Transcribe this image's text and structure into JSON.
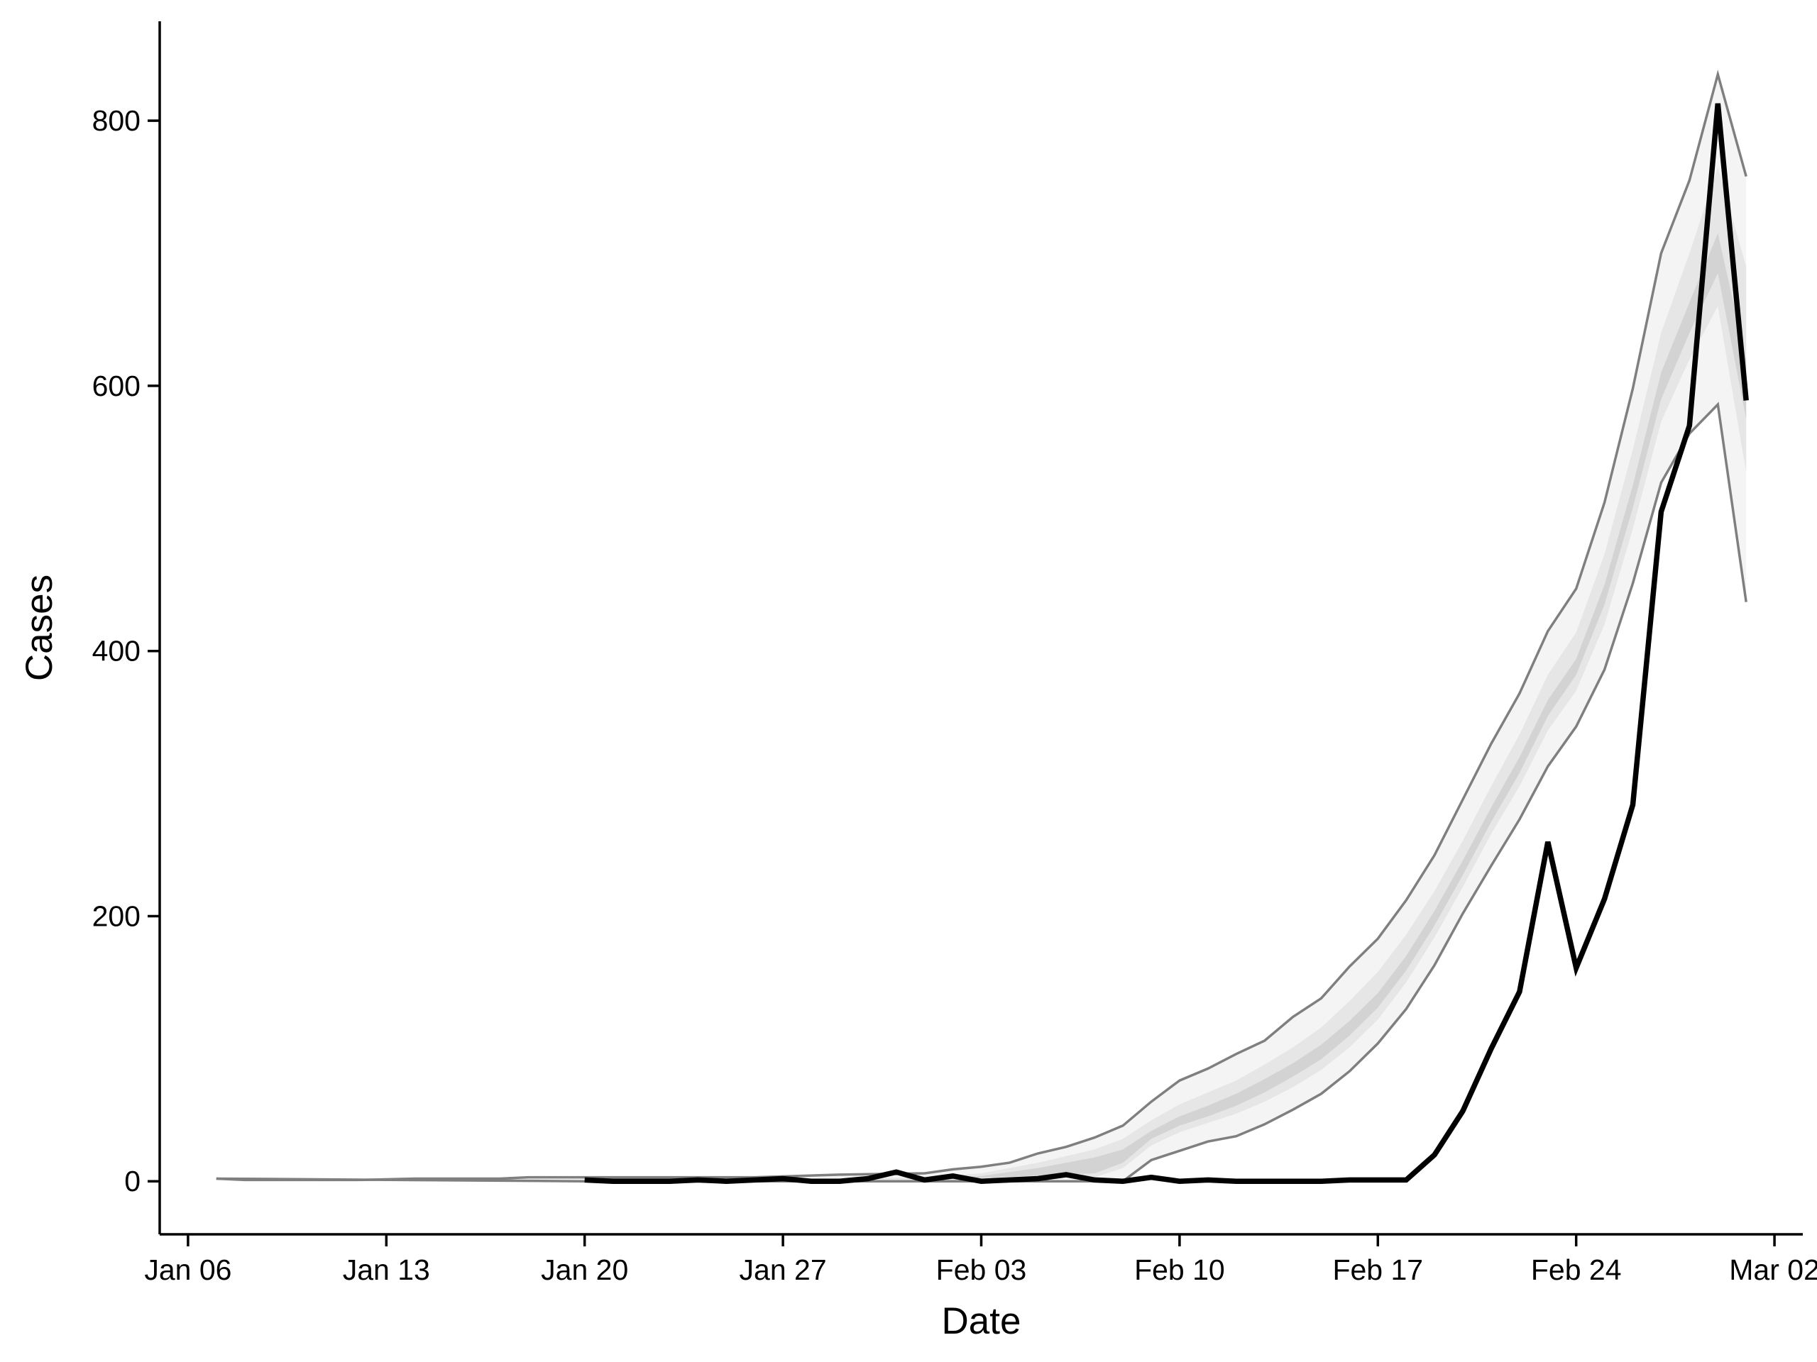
{
  "chart_data": {
    "type": "line",
    "title": "",
    "xlabel": "Date",
    "ylabel": "Cases",
    "x_tick_labels": [
      "Jan 06",
      "Jan 13",
      "Jan 20",
      "Jan 27",
      "Feb 03",
      "Feb 10",
      "Feb 17",
      "Feb 24",
      "Mar 02"
    ],
    "x_ticks": [
      "2020-01-06",
      "2020-01-13",
      "2020-01-20",
      "2020-01-27",
      "2020-02-03",
      "2020-02-10",
      "2020-02-17",
      "2020-02-24",
      "2020-03-02"
    ],
    "y_tick_labels": [
      "0",
      "200",
      "400",
      "600",
      "800"
    ],
    "y_ticks": [
      0,
      200,
      400,
      600,
      800
    ],
    "xlim": [
      "2020-01-05",
      "2020-03-03"
    ],
    "ylim": [
      -40,
      875
    ],
    "grid": false,
    "colors": {
      "observed": "#000000",
      "band_outer": "#7f7f7f",
      "band_fill_outer": "#f4f4f4",
      "band_fill_mid": "#e6e6e6",
      "band_fill_inner": "#d3d3d3"
    },
    "bands": {
      "upper_outer": [
        {
          "x": "2020-01-07",
          "y": 2
        },
        {
          "x": "2020-01-08",
          "y": 1
        },
        {
          "x": "2020-01-10",
          "y": 1
        },
        {
          "x": "2020-01-12",
          "y": 1
        },
        {
          "x": "2020-01-14",
          "y": 2
        },
        {
          "x": "2020-01-17",
          "y": 2
        },
        {
          "x": "2020-01-18",
          "y": 3
        },
        {
          "x": "2020-01-20",
          "y": 3
        },
        {
          "x": "2020-01-23",
          "y": 3
        },
        {
          "x": "2020-01-26",
          "y": 3
        },
        {
          "x": "2020-01-29",
          "y": 5
        },
        {
          "x": "2020-02-01",
          "y": 6
        },
        {
          "x": "2020-02-02",
          "y": 9
        },
        {
          "x": "2020-02-03",
          "y": 11
        },
        {
          "x": "2020-02-04",
          "y": 14
        },
        {
          "x": "2020-02-05",
          "y": 21
        },
        {
          "x": "2020-02-06",
          "y": 26
        },
        {
          "x": "2020-02-07",
          "y": 33
        },
        {
          "x": "2020-02-08",
          "y": 42
        },
        {
          "x": "2020-02-09",
          "y": 60
        },
        {
          "x": "2020-02-10",
          "y": 76
        },
        {
          "x": "2020-02-11",
          "y": 85
        },
        {
          "x": "2020-02-12",
          "y": 96
        },
        {
          "x": "2020-02-13",
          "y": 106
        },
        {
          "x": "2020-02-14",
          "y": 124
        },
        {
          "x": "2020-02-15",
          "y": 138
        },
        {
          "x": "2020-02-16",
          "y": 162
        },
        {
          "x": "2020-02-17",
          "y": 183
        },
        {
          "x": "2020-02-18",
          "y": 212
        },
        {
          "x": "2020-02-19",
          "y": 246
        },
        {
          "x": "2020-02-20",
          "y": 288
        },
        {
          "x": "2020-02-21",
          "y": 330
        },
        {
          "x": "2020-02-22",
          "y": 368
        },
        {
          "x": "2020-02-23",
          "y": 415
        },
        {
          "x": "2020-02-24",
          "y": 447
        },
        {
          "x": "2020-02-25",
          "y": 512
        },
        {
          "x": "2020-02-26",
          "y": 598
        },
        {
          "x": "2020-02-27",
          "y": 700
        },
        {
          "x": "2020-02-28",
          "y": 755
        },
        {
          "x": "2020-02-29",
          "y": 835
        },
        {
          "x": "2020-03-01",
          "y": 758
        }
      ],
      "lower_outer": [
        {
          "x": "2020-01-07",
          "y": 2
        },
        {
          "x": "2020-01-20",
          "y": 0
        },
        {
          "x": "2020-02-08",
          "y": 0
        },
        {
          "x": "2020-02-09",
          "y": 16
        },
        {
          "x": "2020-02-10",
          "y": 23
        },
        {
          "x": "2020-02-11",
          "y": 30
        },
        {
          "x": "2020-02-12",
          "y": 34
        },
        {
          "x": "2020-02-13",
          "y": 43
        },
        {
          "x": "2020-02-14",
          "y": 54
        },
        {
          "x": "2020-02-15",
          "y": 66
        },
        {
          "x": "2020-02-16",
          "y": 83
        },
        {
          "x": "2020-02-17",
          "y": 104
        },
        {
          "x": "2020-02-18",
          "y": 130
        },
        {
          "x": "2020-02-19",
          "y": 163
        },
        {
          "x": "2020-02-20",
          "y": 202
        },
        {
          "x": "2020-02-21",
          "y": 238
        },
        {
          "x": "2020-02-22",
          "y": 273
        },
        {
          "x": "2020-02-23",
          "y": 313
        },
        {
          "x": "2020-02-24",
          "y": 343
        },
        {
          "x": "2020-02-25",
          "y": 386
        },
        {
          "x": "2020-02-26",
          "y": 451
        },
        {
          "x": "2020-02-27",
          "y": 527
        },
        {
          "x": "2020-02-28",
          "y": 564
        },
        {
          "x": "2020-02-29",
          "y": 586
        },
        {
          "x": "2020-03-01",
          "y": 437
        }
      ],
      "upper_mid": [
        {
          "x": "2020-01-28",
          "y": 2
        },
        {
          "x": "2020-02-01",
          "y": 3
        },
        {
          "x": "2020-02-03",
          "y": 6
        },
        {
          "x": "2020-02-05",
          "y": 14
        },
        {
          "x": "2020-02-07",
          "y": 24
        },
        {
          "x": "2020-02-08",
          "y": 32
        },
        {
          "x": "2020-02-09",
          "y": 46
        },
        {
          "x": "2020-02-10",
          "y": 58
        },
        {
          "x": "2020-02-11",
          "y": 67
        },
        {
          "x": "2020-02-12",
          "y": 76
        },
        {
          "x": "2020-02-13",
          "y": 88
        },
        {
          "x": "2020-02-14",
          "y": 101
        },
        {
          "x": "2020-02-15",
          "y": 116
        },
        {
          "x": "2020-02-16",
          "y": 136
        },
        {
          "x": "2020-02-17",
          "y": 158
        },
        {
          "x": "2020-02-18",
          "y": 186
        },
        {
          "x": "2020-02-19",
          "y": 219
        },
        {
          "x": "2020-02-20",
          "y": 257
        },
        {
          "x": "2020-02-21",
          "y": 298
        },
        {
          "x": "2020-02-22",
          "y": 337
        },
        {
          "x": "2020-02-23",
          "y": 382
        },
        {
          "x": "2020-02-24",
          "y": 414
        },
        {
          "x": "2020-02-25",
          "y": 473
        },
        {
          "x": "2020-02-26",
          "y": 552
        },
        {
          "x": "2020-02-27",
          "y": 640
        },
        {
          "x": "2020-02-28",
          "y": 700
        },
        {
          "x": "2020-02-29",
          "y": 765
        },
        {
          "x": "2020-03-01",
          "y": 690
        }
      ],
      "lower_mid": [
        {
          "x": "2020-01-28",
          "y": 1
        },
        {
          "x": "2020-02-03",
          "y": 1
        },
        {
          "x": "2020-02-07",
          "y": 3
        },
        {
          "x": "2020-02-08",
          "y": 10
        },
        {
          "x": "2020-02-09",
          "y": 27
        },
        {
          "x": "2020-02-10",
          "y": 37
        },
        {
          "x": "2020-02-11",
          "y": 44
        },
        {
          "x": "2020-02-12",
          "y": 51
        },
        {
          "x": "2020-02-13",
          "y": 60
        },
        {
          "x": "2020-02-14",
          "y": 71
        },
        {
          "x": "2020-02-15",
          "y": 84
        },
        {
          "x": "2020-02-16",
          "y": 101
        },
        {
          "x": "2020-02-17",
          "y": 122
        },
        {
          "x": "2020-02-18",
          "y": 150
        },
        {
          "x": "2020-02-19",
          "y": 184
        },
        {
          "x": "2020-02-20",
          "y": 222
        },
        {
          "x": "2020-02-21",
          "y": 262
        },
        {
          "x": "2020-02-22",
          "y": 298
        },
        {
          "x": "2020-02-23",
          "y": 340
        },
        {
          "x": "2020-02-24",
          "y": 370
        },
        {
          "x": "2020-02-25",
          "y": 420
        },
        {
          "x": "2020-02-26",
          "y": 492
        },
        {
          "x": "2020-02-27",
          "y": 573
        },
        {
          "x": "2020-02-28",
          "y": 620
        },
        {
          "x": "2020-02-29",
          "y": 660
        },
        {
          "x": "2020-03-01",
          "y": 535
        }
      ],
      "upper_inner": [
        {
          "x": "2020-02-01",
          "y": 2
        },
        {
          "x": "2020-02-03",
          "y": 4
        },
        {
          "x": "2020-02-05",
          "y": 10
        },
        {
          "x": "2020-02-07",
          "y": 18
        },
        {
          "x": "2020-02-08",
          "y": 24
        },
        {
          "x": "2020-02-09",
          "y": 38
        },
        {
          "x": "2020-02-10",
          "y": 49
        },
        {
          "x": "2020-02-11",
          "y": 57
        },
        {
          "x": "2020-02-12",
          "y": 66
        },
        {
          "x": "2020-02-13",
          "y": 77
        },
        {
          "x": "2020-02-14",
          "y": 89
        },
        {
          "x": "2020-02-15",
          "y": 103
        },
        {
          "x": "2020-02-16",
          "y": 121
        },
        {
          "x": "2020-02-17",
          "y": 142
        },
        {
          "x": "2020-02-18",
          "y": 170
        },
        {
          "x": "2020-02-19",
          "y": 204
        },
        {
          "x": "2020-02-20",
          "y": 242
        },
        {
          "x": "2020-02-21",
          "y": 282
        },
        {
          "x": "2020-02-22",
          "y": 320
        },
        {
          "x": "2020-02-23",
          "y": 363
        },
        {
          "x": "2020-02-24",
          "y": 394
        },
        {
          "x": "2020-02-25",
          "y": 450
        },
        {
          "x": "2020-02-26",
          "y": 525
        },
        {
          "x": "2020-02-27",
          "y": 610
        },
        {
          "x": "2020-02-28",
          "y": 663
        },
        {
          "x": "2020-02-29",
          "y": 715
        },
        {
          "x": "2020-03-01",
          "y": 620
        }
      ],
      "lower_inner": [
        {
          "x": "2020-02-01",
          "y": 1
        },
        {
          "x": "2020-02-07",
          "y": 6
        },
        {
          "x": "2020-02-08",
          "y": 14
        },
        {
          "x": "2020-02-09",
          "y": 32
        },
        {
          "x": "2020-02-10",
          "y": 42
        },
        {
          "x": "2020-02-11",
          "y": 49
        },
        {
          "x": "2020-02-12",
          "y": 57
        },
        {
          "x": "2020-02-13",
          "y": 67
        },
        {
          "x": "2020-02-14",
          "y": 79
        },
        {
          "x": "2020-02-15",
          "y": 92
        },
        {
          "x": "2020-02-16",
          "y": 110
        },
        {
          "x": "2020-02-17",
          "y": 131
        },
        {
          "x": "2020-02-18",
          "y": 159
        },
        {
          "x": "2020-02-19",
          "y": 193
        },
        {
          "x": "2020-02-20",
          "y": 231
        },
        {
          "x": "2020-02-21",
          "y": 271
        },
        {
          "x": "2020-02-22",
          "y": 308
        },
        {
          "x": "2020-02-23",
          "y": 351
        },
        {
          "x": "2020-02-24",
          "y": 382
        },
        {
          "x": "2020-02-25",
          "y": 435
        },
        {
          "x": "2020-02-26",
          "y": 508
        },
        {
          "x": "2020-02-27",
          "y": 590
        },
        {
          "x": "2020-02-28",
          "y": 640
        },
        {
          "x": "2020-02-29",
          "y": 685
        },
        {
          "x": "2020-03-01",
          "y": 575
        }
      ]
    },
    "series": [
      {
        "values": [
          {
            "x": "2020-01-20",
            "y": 1
          },
          {
            "x": "2020-01-21",
            "y": 0
          },
          {
            "x": "2020-01-22",
            "y": 0
          },
          {
            "x": "2020-01-23",
            "y": 0
          },
          {
            "x": "2020-01-24",
            "y": 1
          },
          {
            "x": "2020-01-25",
            "y": 0
          },
          {
            "x": "2020-01-26",
            "y": 1
          },
          {
            "x": "2020-01-27",
            "y": 2
          },
          {
            "x": "2020-01-28",
            "y": 0
          },
          {
            "x": "2020-01-29",
            "y": 0
          },
          {
            "x": "2020-01-30",
            "y": 2
          },
          {
            "x": "2020-01-31",
            "y": 7
          },
          {
            "x": "2020-02-01",
            "y": 1
          },
          {
            "x": "2020-02-02",
            "y": 4
          },
          {
            "x": "2020-02-03",
            "y": 0
          },
          {
            "x": "2020-02-04",
            "y": 1
          },
          {
            "x": "2020-02-05",
            "y": 2
          },
          {
            "x": "2020-02-06",
            "y": 5
          },
          {
            "x": "2020-02-07",
            "y": 1
          },
          {
            "x": "2020-02-08",
            "y": 0
          },
          {
            "x": "2020-02-09",
            "y": 3
          },
          {
            "x": "2020-02-10",
            "y": 0
          },
          {
            "x": "2020-02-11",
            "y": 1
          },
          {
            "x": "2020-02-12",
            "y": 0
          },
          {
            "x": "2020-02-13",
            "y": 0
          },
          {
            "x": "2020-02-14",
            "y": 0
          },
          {
            "x": "2020-02-15",
            "y": 0
          },
          {
            "x": "2020-02-16",
            "y": 1
          },
          {
            "x": "2020-02-17",
            "y": 1
          },
          {
            "x": "2020-02-18",
            "y": 1
          },
          {
            "x": "2020-02-19",
            "y": 20
          },
          {
            "x": "2020-02-20",
            "y": 53
          },
          {
            "x": "2020-02-21",
            "y": 100
          },
          {
            "x": "2020-02-22",
            "y": 143
          },
          {
            "x": "2020-02-23",
            "y": 256
          },
          {
            "x": "2020-02-24",
            "y": 161
          },
          {
            "x": "2020-02-25",
            "y": 213
          },
          {
            "x": "2020-02-26",
            "y": 284
          },
          {
            "x": "2020-02-27",
            "y": 505
          },
          {
            "x": "2020-02-28",
            "y": 570
          },
          {
            "x": "2020-02-29",
            "y": 813
          },
          {
            "x": "2020-03-01",
            "y": 589
          }
        ]
      }
    ]
  }
}
